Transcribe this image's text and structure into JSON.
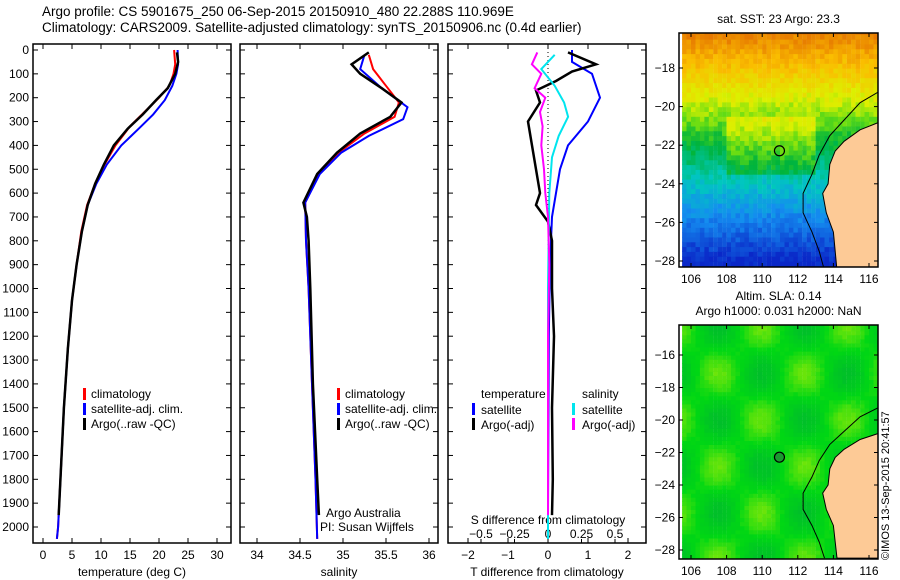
{
  "title": {
    "line1": "Argo profile: CS 5901675_250 06-Sep-2015 20150910_480 22.288S 110.969E",
    "line2": "Climatology: CARS2009. Satellite-adjusted climatology: synTS_20150906.nc (0.4d earlier)"
  },
  "stamp": "©IMOS 13-Sep-2015 20:41:57",
  "colors": {
    "clim": "#ff0000",
    "sat": "#0000ff",
    "argo": "#000000",
    "ssat": "#00e5ee",
    "sargo": "#ff00ff",
    "land": "#fdca96"
  },
  "chart_data": [
    {
      "type": "line",
      "name": "temperature",
      "xlabel": "temperature (deg C)",
      "xticks": [
        0,
        5,
        10,
        15,
        20,
        25,
        30
      ],
      "yticks": [
        0,
        100,
        200,
        300,
        400,
        500,
        600,
        700,
        800,
        900,
        1000,
        1100,
        1200,
        1300,
        1400,
        1500,
        1600,
        1700,
        1800,
        1900,
        2000
      ],
      "xlim": [
        -0.5,
        31
      ],
      "ylim": [
        0,
        2050
      ],
      "legend": [
        "climatology",
        "satellite-adj. clim.",
        "Argo(..raw -QC)"
      ],
      "series": [
        {
          "name": "climatology",
          "color": "clim",
          "points": [
            [
              22.6,
              0
            ],
            [
              22.8,
              60
            ],
            [
              22.5,
              100
            ],
            [
              21.8,
              150
            ],
            [
              20,
              200
            ],
            [
              17.5,
              260
            ],
            [
              15,
              320
            ],
            [
              12.5,
              400
            ],
            [
              10.6,
              480
            ],
            [
              9,
              560
            ],
            [
              7.6,
              650
            ],
            [
              6.6,
              760
            ],
            [
              5.8,
              900
            ],
            [
              5,
              1050
            ],
            [
              4.3,
              1250
            ],
            [
              3.6,
              1500
            ],
            [
              3.1,
              1750
            ],
            [
              2.6,
              2000
            ],
            [
              2.4,
              2050
            ]
          ]
        },
        {
          "name": "satellite-adj. clim.",
          "color": "sat",
          "points": [
            [
              23.2,
              0
            ],
            [
              23.3,
              60
            ],
            [
              23,
              100
            ],
            [
              22.3,
              150
            ],
            [
              21,
              210
            ],
            [
              19,
              270
            ],
            [
              16.5,
              330
            ],
            [
              13.5,
              400
            ],
            [
              11,
              480
            ],
            [
              9.2,
              560
            ],
            [
              7.7,
              650
            ],
            [
              6.7,
              760
            ],
            [
              5.8,
              900
            ],
            [
              5,
              1050
            ],
            [
              4.3,
              1250
            ],
            [
              3.6,
              1500
            ],
            [
              3.1,
              1750
            ],
            [
              2.6,
              2000
            ],
            [
              2.4,
              2050
            ]
          ]
        },
        {
          "name": "Argo(..raw -QC)",
          "color": "argo",
          "points": [
            [
              23.1,
              10
            ],
            [
              23.3,
              50
            ],
            [
              22.8,
              100
            ],
            [
              21.5,
              160
            ],
            [
              19.5,
              210
            ],
            [
              17.2,
              270
            ],
            [
              14.6,
              330
            ],
            [
              12.2,
              400
            ],
            [
              10.5,
              480
            ],
            [
              9,
              560
            ],
            [
              7.7,
              650
            ],
            [
              6.7,
              760
            ],
            [
              5.8,
              900
            ],
            [
              5,
              1050
            ],
            [
              4.3,
              1250
            ],
            [
              3.6,
              1500
            ],
            [
              3.1,
              1750
            ],
            [
              2.7,
              1950
            ]
          ]
        }
      ]
    },
    {
      "type": "line",
      "name": "salinity",
      "xlabel": "salinity",
      "xticks": [
        34,
        34.5,
        35,
        35.5,
        36
      ],
      "xlim": [
        33.8,
        36.1
      ],
      "ylim": [
        0,
        2050
      ],
      "legend": [
        "climatology",
        "satellite-adj. clim.",
        "Argo(..raw -QC)"
      ],
      "annotation": [
        "Argo Australia",
        "PI: Susan Wijffels"
      ],
      "series": [
        {
          "name": "climatology",
          "color": "clim",
          "points": [
            [
              35.3,
              20
            ],
            [
              35.35,
              80
            ],
            [
              35.5,
              150
            ],
            [
              35.65,
              220
            ],
            [
              35.6,
              280
            ],
            [
              35.25,
              350
            ],
            [
              34.95,
              430
            ],
            [
              34.72,
              520
            ],
            [
              34.56,
              640
            ],
            [
              34.57,
              800
            ],
            [
              34.6,
              1000
            ],
            [
              34.64,
              1400
            ],
            [
              34.68,
              1800
            ],
            [
              34.7,
              2050
            ]
          ]
        },
        {
          "name": "satellite-adj. clim.",
          "color": "sat",
          "points": [
            [
              35.25,
              20
            ],
            [
              35.2,
              80
            ],
            [
              35.45,
              160
            ],
            [
              35.75,
              240
            ],
            [
              35.7,
              290
            ],
            [
              35.3,
              360
            ],
            [
              34.98,
              430
            ],
            [
              34.73,
              520
            ],
            [
              34.56,
              640
            ],
            [
              34.57,
              800
            ],
            [
              34.6,
              1000
            ],
            [
              34.64,
              1400
            ],
            [
              34.68,
              1800
            ],
            [
              34.7,
              2050
            ]
          ]
        },
        {
          "name": "Argo(..raw -QC)",
          "color": "argo",
          "points": [
            [
              35.3,
              10
            ],
            [
              35.1,
              60
            ],
            [
              35.2,
              100
            ],
            [
              35.45,
              160
            ],
            [
              35.68,
              220
            ],
            [
              35.55,
              280
            ],
            [
              35.2,
              350
            ],
            [
              34.93,
              430
            ],
            [
              34.7,
              520
            ],
            [
              34.54,
              640
            ],
            [
              34.58,
              700
            ],
            [
              34.6,
              800
            ],
            [
              34.62,
              1000
            ],
            [
              34.65,
              1400
            ],
            [
              34.7,
              1800
            ],
            [
              34.72,
              1950
            ]
          ]
        }
      ]
    },
    {
      "type": "line",
      "name": "difference",
      "xlabel": "T difference from climatology",
      "xlabel_top": "S difference from climatology",
      "xticks": [
        -2,
        -1,
        0,
        1,
        2
      ],
      "xticks_s": [
        -0.5,
        -0.25,
        0,
        0.25,
        0.5
      ],
      "xticklabels_s": [
        "-0.5",
        "-0.25",
        "0",
        "0.25",
        "0.5"
      ],
      "xlim": [
        -2.5,
        2.5
      ],
      "ylim": [
        0,
        2050
      ],
      "legend_t": {
        "title": "temperature",
        "items": [
          "satellite",
          "Argo(-adj)"
        ]
      },
      "legend_s": {
        "title": "salinity",
        "items": [
          "satellite",
          "Argo(-adj)"
        ]
      },
      "series": [
        {
          "name": "T satellite",
          "color": "sat",
          "unit": "T",
          "points": [
            [
              0.6,
              0
            ],
            [
              0.6,
              50
            ],
            [
              1.1,
              100
            ],
            [
              1.3,
              200
            ],
            [
              1.0,
              300
            ],
            [
              0.5,
              400
            ],
            [
              0.3,
              500
            ],
            [
              0.2,
              600
            ],
            [
              0.1,
              700
            ],
            [
              0.05,
              900
            ],
            [
              0.02,
              1200
            ],
            [
              0,
              1950
            ]
          ]
        },
        {
          "name": "T Argo(-adj)",
          "color": "argo",
          "unit": "T",
          "points": [
            [
              0.5,
              10
            ],
            [
              1.2,
              60
            ],
            [
              0.6,
              90
            ],
            [
              0.2,
              130
            ],
            [
              -0.3,
              170
            ],
            [
              -0.2,
              220
            ],
            [
              -0.5,
              300
            ],
            [
              -0.4,
              400
            ],
            [
              -0.3,
              500
            ],
            [
              -0.2,
              600
            ],
            [
              -0.3,
              650
            ],
            [
              0,
              720
            ],
            [
              0.1,
              800
            ],
            [
              0.1,
              1000
            ],
            [
              0.15,
              1200
            ],
            [
              0.1,
              1500
            ],
            [
              0.12,
              1800
            ],
            [
              0.1,
              1950
            ]
          ]
        },
        {
          "name": "S satellite",
          "color": "ssat",
          "unit": "S",
          "points": [
            [
              0.05,
              20
            ],
            [
              -0.05,
              80
            ],
            [
              0.05,
              150
            ],
            [
              0.12,
              220
            ],
            [
              0.15,
              280
            ],
            [
              0.08,
              360
            ],
            [
              0.03,
              450
            ],
            [
              0.01,
              600
            ],
            [
              0,
              1000
            ],
            [
              0,
              2050
            ]
          ]
        },
        {
          "name": "S Argo(-adj)",
          "color": "sargo",
          "unit": "S",
          "points": [
            [
              -0.08,
              10
            ],
            [
              -0.12,
              60
            ],
            [
              -0.05,
              100
            ],
            [
              -0.1,
              160
            ],
            [
              -0.02,
              200
            ],
            [
              -0.06,
              260
            ],
            [
              -0.04,
              320
            ],
            [
              -0.05,
              400
            ],
            [
              -0.03,
              500
            ],
            [
              -0.02,
              600
            ],
            [
              0,
              700
            ],
            [
              0.01,
              900
            ],
            [
              0,
              1200
            ],
            [
              0,
              1600
            ],
            [
              0,
              1950
            ]
          ]
        }
      ]
    },
    {
      "type": "heatmap",
      "name": "sst-map",
      "title": "sat. SST: 23 Argo: 23.3",
      "xticks": [
        106,
        108,
        110,
        112,
        114,
        116
      ],
      "yticks": [
        -18,
        -20,
        -22,
        -24,
        -26,
        -28
      ],
      "xlim": [
        105.5,
        116.5
      ],
      "ylim": [
        -28.3,
        -16.3
      ],
      "argo_position": [
        110.969,
        -22.288
      ]
    },
    {
      "type": "heatmap",
      "name": "sla-map",
      "title": "Altim. SLA: 0.14",
      "subtitle": "Argo h1000: 0.031 h2000: NaN",
      "xticks": [
        106,
        108,
        110,
        112,
        114,
        116
      ],
      "yticks": [
        -16,
        -18,
        -20,
        -22,
        -24,
        -26,
        -28
      ],
      "xlim": [
        105.5,
        116.5
      ],
      "ylim": [
        -28.3,
        -14.5
      ],
      "argo_position": [
        110.969,
        -22.288
      ]
    }
  ]
}
